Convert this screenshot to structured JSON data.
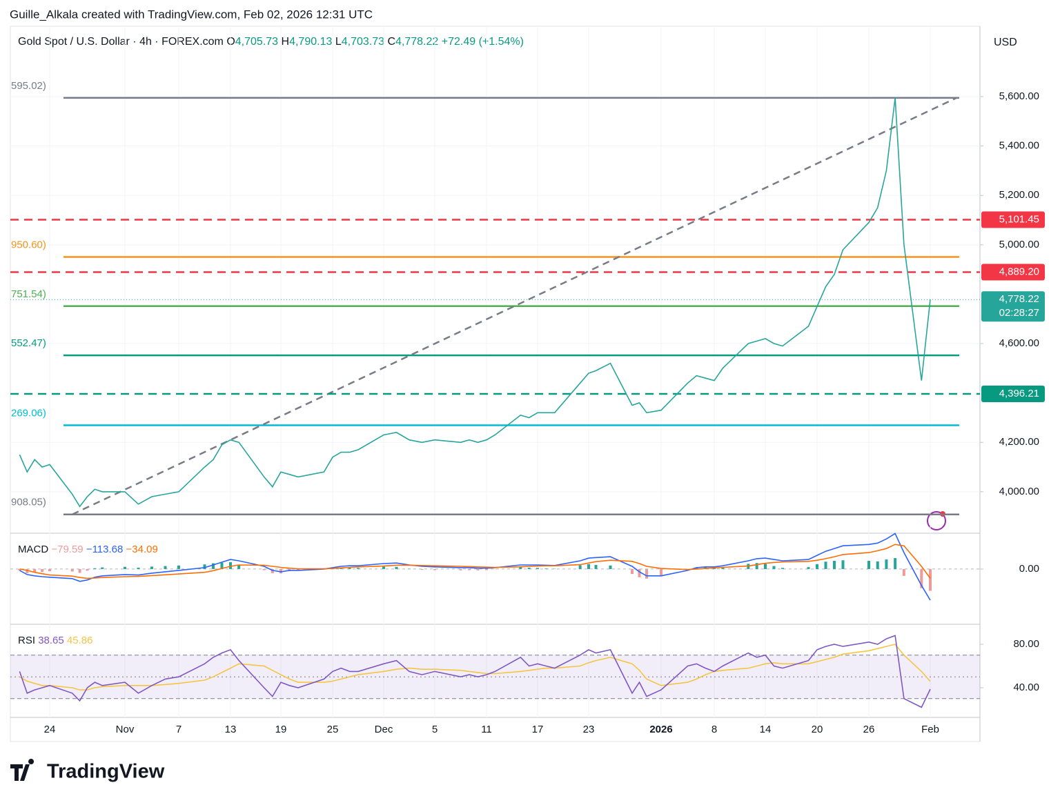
{
  "header": {
    "credit": "Guille_Alkala created with TradingView.com, Feb 02, 2026 12:31 UTC",
    "symbol": "Gold Spot / U.S. Dollar · 4h · FOREX.com",
    "ohlc": [
      {
        "key": "O",
        "value": "4,705.73"
      },
      {
        "key": "H",
        "value": "4,790.13"
      },
      {
        "key": "L",
        "value": "4,703.73"
      },
      {
        "key": "C",
        "value": "4,778.22"
      }
    ],
    "change": "+72.49 (+1.54%)",
    "currency": "USD"
  },
  "footer": {
    "brand": "TradingView"
  },
  "chart_data": [
    {
      "type": "line",
      "name": "price",
      "color": "#26a69a",
      "x": [
        "Oct 20",
        "Oct 21",
        "Oct 22",
        "Oct 23",
        "Oct 24",
        "Oct 27",
        "Oct 28",
        "Oct 29",
        "Oct 30",
        "Oct 31",
        "Nov 3",
        "Nov 4",
        "Nov 5",
        "Nov 6",
        "Nov 7",
        "Nov 10",
        "Nov 11",
        "Nov 12",
        "Nov 13",
        "Nov 14",
        "Nov 17",
        "Nov 18",
        "Nov 19",
        "Nov 20",
        "Nov 21",
        "Nov 24",
        "Nov 25",
        "Nov 26",
        "Nov 27",
        "Nov 28",
        "Dec 1",
        "Dec 2",
        "Dec 3",
        "Dec 4",
        "Dec 5",
        "Dec 8",
        "Dec 9",
        "Dec 10",
        "Dec 11",
        "Dec 12",
        "Dec 15",
        "Dec 16",
        "Dec 17",
        "Dec 18",
        "Dec 19",
        "Dec 22",
        "Dec 23",
        "Dec 24",
        "Dec 26",
        "Dec 29",
        "Dec 30",
        "Dec 31",
        "Jan 2",
        "Jan 5",
        "Jan 6",
        "Jan 7",
        "Jan 8",
        "Jan 9",
        "Jan 12",
        "Jan 13",
        "Jan 14",
        "Jan 15",
        "Jan 16",
        "Jan 19",
        "Jan 20",
        "Jan 21",
        "Jan 22",
        "Jan 23",
        "Jan 26",
        "Jan 27",
        "Jan 28",
        "Jan 29",
        "Jan 30",
        "Feb 1",
        "Feb 2"
      ],
      "values": [
        4150,
        4080,
        4130,
        4100,
        4110,
        3990,
        3940,
        3980,
        4010,
        4000,
        4000,
        3950,
        3980,
        3990,
        4000,
        4100,
        4130,
        4190,
        4210,
        4200,
        4060,
        4020,
        4080,
        4070,
        4060,
        4080,
        4140,
        4160,
        4160,
        4170,
        4230,
        4240,
        4210,
        4200,
        4210,
        4200,
        4210,
        4200,
        4210,
        4230,
        4310,
        4300,
        4320,
        4320,
        4320,
        4440,
        4480,
        4490,
        4520,
        4350,
        4360,
        4320,
        4330,
        4440,
        4470,
        4460,
        4450,
        4500,
        4600,
        4610,
        4620,
        4600,
        4590,
        4670,
        4750,
        4830,
        4880,
        4980,
        5090,
        5150,
        5300,
        5595,
        5000,
        4450,
        4778.22
      ],
      "ylim": [
        3832,
        5885
      ],
      "yticks": [
        {
          "value": 5600,
          "label": "5,600.00"
        },
        {
          "value": 5400,
          "label": "5,400.00"
        },
        {
          "value": 5200,
          "label": "5,200.00"
        },
        {
          "value": 5000,
          "label": "5,000.00"
        },
        {
          "value": 4600,
          "label": "4,600.00"
        },
        {
          "value": 4200,
          "label": "4,200.00"
        },
        {
          "value": 4000,
          "label": "4,000.00"
        }
      ],
      "xticks": [
        {
          "value": "Oct 24",
          "label": "24"
        },
        {
          "value": "Nov 3",
          "label": "Nov"
        },
        {
          "value": "Nov 7",
          "label": "7"
        },
        {
          "value": "Nov 13",
          "label": "13"
        },
        {
          "value": "Nov 19",
          "label": "19"
        },
        {
          "value": "Nov 25",
          "label": "25"
        },
        {
          "value": "Dec 1",
          "label": "Dec"
        },
        {
          "value": "Dec 5",
          "label": "5"
        },
        {
          "value": "Dec 11",
          "label": "11"
        },
        {
          "value": "Dec 17",
          "label": "17"
        },
        {
          "value": "Dec 23",
          "label": "23"
        },
        {
          "value": "Jan 2",
          "label": "2026"
        },
        {
          "value": "Jan 8",
          "label": "8"
        },
        {
          "value": "Jan 14",
          "label": "14"
        },
        {
          "value": "Jan 20",
          "label": "20"
        },
        {
          "value": "Jan 26",
          "label": "26"
        },
        {
          "value": "Feb 2",
          "label": "Feb"
        }
      ],
      "grid": true,
      "fib_levels": [
        {
          "value": 5595.02,
          "label": "595.02)",
          "color": "#787b86"
        },
        {
          "value": 4950.6,
          "label": "950.60)",
          "color": "#f7931a"
        },
        {
          "value": 4751.54,
          "label": "751.54)",
          "color": "#4caf50"
        },
        {
          "value": 4552.47,
          "label": "552.47)",
          "color": "#089981"
        },
        {
          "value": 4269.06,
          "label": "269.06)",
          "color": "#00bcd4"
        },
        {
          "value": 3908.05,
          "label": "908.05)",
          "color": "#787b86"
        }
      ],
      "levels": [
        {
          "value": 5101.45,
          "label": "5,101.45",
          "color": "#f23645"
        },
        {
          "value": 4889.2,
          "label": "4,889.20",
          "color": "#f23645"
        },
        {
          "value": 4396.21,
          "label": "4,396.21",
          "color": "#089981"
        }
      ],
      "last": {
        "value": 4778.22,
        "label": "4,778.22",
        "countdown": "02:28:27",
        "color": "#26a69a"
      },
      "trendline": {
        "x": [
          "Oct 27",
          "Feb 5"
        ],
        "values": [
          3908.05,
          5595.02
        ]
      }
    },
    {
      "type": "macd",
      "title": "MACD",
      "value_labels": [
        "−79.59",
        "−113.68",
        "−34.09"
      ],
      "series": [
        {
          "name": "histogram",
          "color": "#ef9a9a",
          "values": [
            -5,
            -15,
            -13,
            -11,
            -8,
            -9,
            -14,
            -6,
            3,
            6,
            8,
            5,
            9,
            11,
            13,
            17,
            21,
            23,
            25,
            15,
            -4,
            -15,
            -16,
            -8,
            -6,
            -1,
            3,
            6,
            6,
            4,
            9,
            8,
            1,
            -3,
            -4,
            -5,
            -4,
            -5,
            -4,
            -1,
            7,
            5,
            4,
            2,
            1,
            14,
            18,
            15,
            13,
            -18,
            -30,
            -35,
            -27,
            -3,
            5,
            6,
            4,
            6,
            19,
            22,
            19,
            11,
            4,
            7,
            18,
            27,
            30,
            32,
            30,
            28,
            35,
            40,
            -25,
            -70,
            -79.59
          ]
        },
        {
          "name": "macd",
          "color": "#2962ff",
          "values": [
            -5,
            -20,
            -25,
            -28,
            -30,
            -35,
            -45,
            -40,
            -30,
            -25,
            -20,
            -22,
            -15,
            -10,
            -5,
            5,
            15,
            25,
            35,
            30,
            10,
            -5,
            -10,
            -5,
            -5,
            0,
            5,
            10,
            12,
            12,
            20,
            22,
            15,
            10,
            8,
            5,
            5,
            3,
            3,
            5,
            15,
            15,
            15,
            14,
            13,
            30,
            40,
            42,
            45,
            10,
            -10,
            -25,
            -25,
            -5,
            5,
            8,
            8,
            12,
            30,
            38,
            40,
            35,
            30,
            35,
            50,
            65,
            75,
            85,
            90,
            95,
            110,
            130,
            60,
            -60,
            -113.68
          ]
        },
        {
          "name": "signal",
          "color": "#ff6d00",
          "values": [
            0,
            -5,
            -12,
            -17,
            -22,
            -26,
            -31,
            -34,
            -33,
            -31,
            -28,
            -27,
            -24,
            -21,
            -18,
            -12,
            -6,
            2,
            10,
            15,
            14,
            10,
            6,
            3,
            1,
            1,
            2,
            4,
            6,
            8,
            11,
            14,
            14,
            13,
            12,
            10,
            9,
            8,
            7,
            6,
            8,
            10,
            11,
            12,
            12,
            16,
            22,
            27,
            32,
            28,
            20,
            10,
            2,
            -2,
            0,
            2,
            4,
            6,
            11,
            16,
            21,
            24,
            26,
            28,
            32,
            38,
            45,
            53,
            60,
            67,
            75,
            90,
            85,
            10,
            -34.09
          ]
        }
      ],
      "ylim": [
        -202,
        131
      ],
      "yticks": [
        {
          "value": 0,
          "label": "0.00"
        }
      ]
    },
    {
      "type": "rsi",
      "title": "RSI",
      "value_labels": [
        "38.65",
        "45.86"
      ],
      "series": [
        {
          "name": "rsi",
          "color": "#7e57c2",
          "values": [
            55,
            35,
            38,
            40,
            42,
            35,
            28,
            40,
            45,
            42,
            45,
            35,
            42,
            48,
            50,
            62,
            68,
            72,
            75,
            65,
            40,
            32,
            45,
            42,
            40,
            48,
            55,
            58,
            55,
            55,
            62,
            65,
            55,
            52,
            55,
            50,
            52,
            50,
            52,
            55,
            68,
            60,
            62,
            60,
            58,
            70,
            75,
            72,
            75,
            35,
            45,
            32,
            38,
            60,
            62,
            58,
            55,
            60,
            72,
            68,
            70,
            60,
            58,
            65,
            75,
            78,
            80,
            78,
            82,
            80,
            85,
            88,
            30,
            22,
            38.65
          ]
        },
        {
          "name": "rsi-ma",
          "color": "#f5c542",
          "values": [
            50,
            46,
            44,
            42,
            42,
            40,
            38,
            38,
            40,
            41,
            42,
            42,
            42,
            43,
            44,
            47,
            50,
            54,
            58,
            62,
            60,
            56,
            52,
            48,
            45,
            45,
            46,
            48,
            50,
            52,
            55,
            57,
            58,
            57,
            57,
            56,
            55,
            54,
            53,
            53,
            55,
            56,
            57,
            58,
            58,
            60,
            63,
            65,
            68,
            62,
            56,
            48,
            42,
            45,
            48,
            52,
            55,
            56,
            58,
            60,
            62,
            63,
            62,
            62,
            64,
            66,
            68,
            71,
            74,
            76,
            78,
            80,
            70,
            55,
            45.86
          ]
        }
      ],
      "ylim": [
        12.7,
        98.4
      ],
      "yticks": [
        {
          "value": 80,
          "label": "80.00"
        },
        {
          "value": 40,
          "label": "40.00"
        }
      ],
      "bands": [
        70,
        50,
        30
      ]
    }
  ]
}
